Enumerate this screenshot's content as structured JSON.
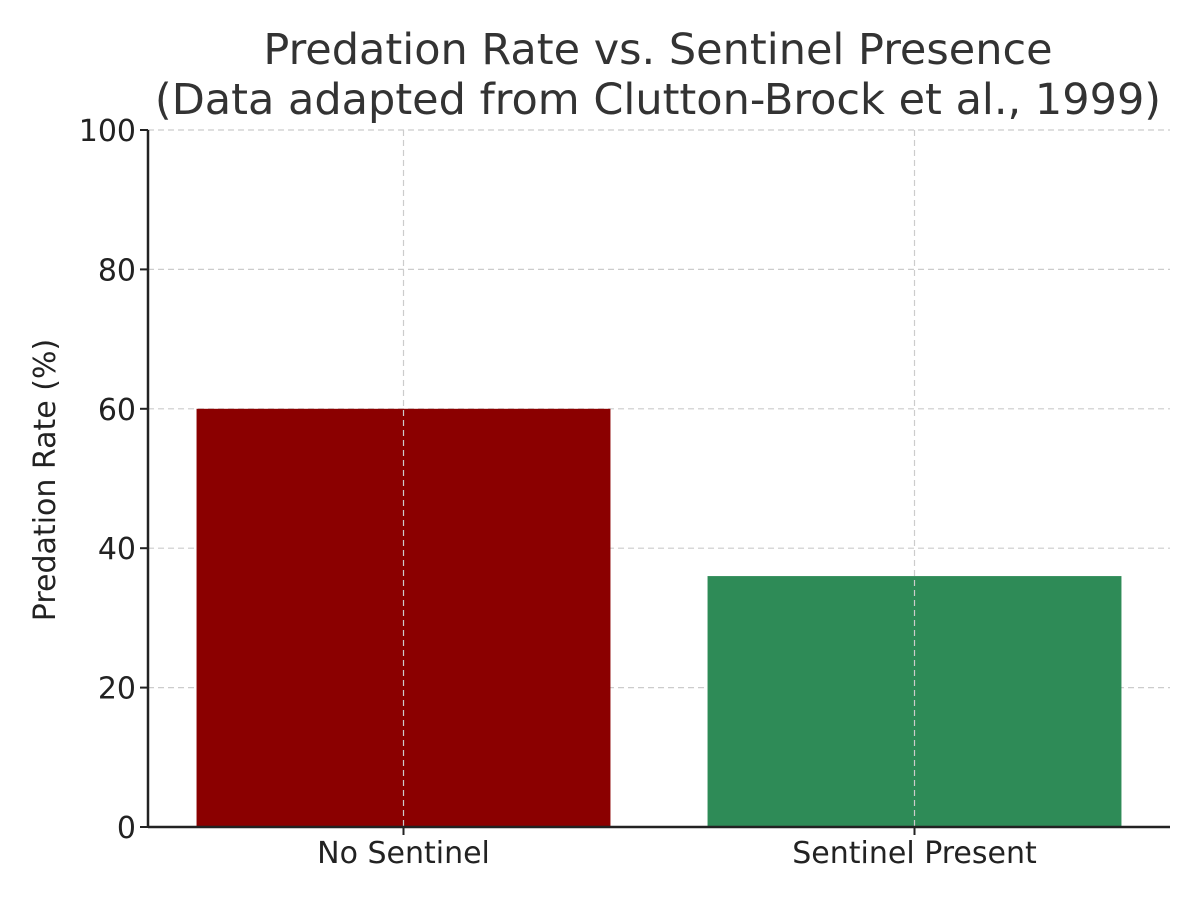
{
  "chart_data": {
    "type": "bar",
    "title": "Predation Rate vs. Sentinel Presence",
    "subtitle": "(Data adapted from Clutton-Brock et al., 1999)",
    "xlabel": "",
    "ylabel": "Predation Rate (%)",
    "categories": [
      "No Sentinel",
      "Sentinel Present"
    ],
    "values": [
      60,
      36
    ],
    "bar_colors": [
      "#8b0000",
      "#2e8b57"
    ],
    "ylim": [
      0,
      100
    ],
    "yticks": [
      0,
      20,
      40,
      60,
      80,
      100
    ],
    "grid": true,
    "legend": "none"
  }
}
